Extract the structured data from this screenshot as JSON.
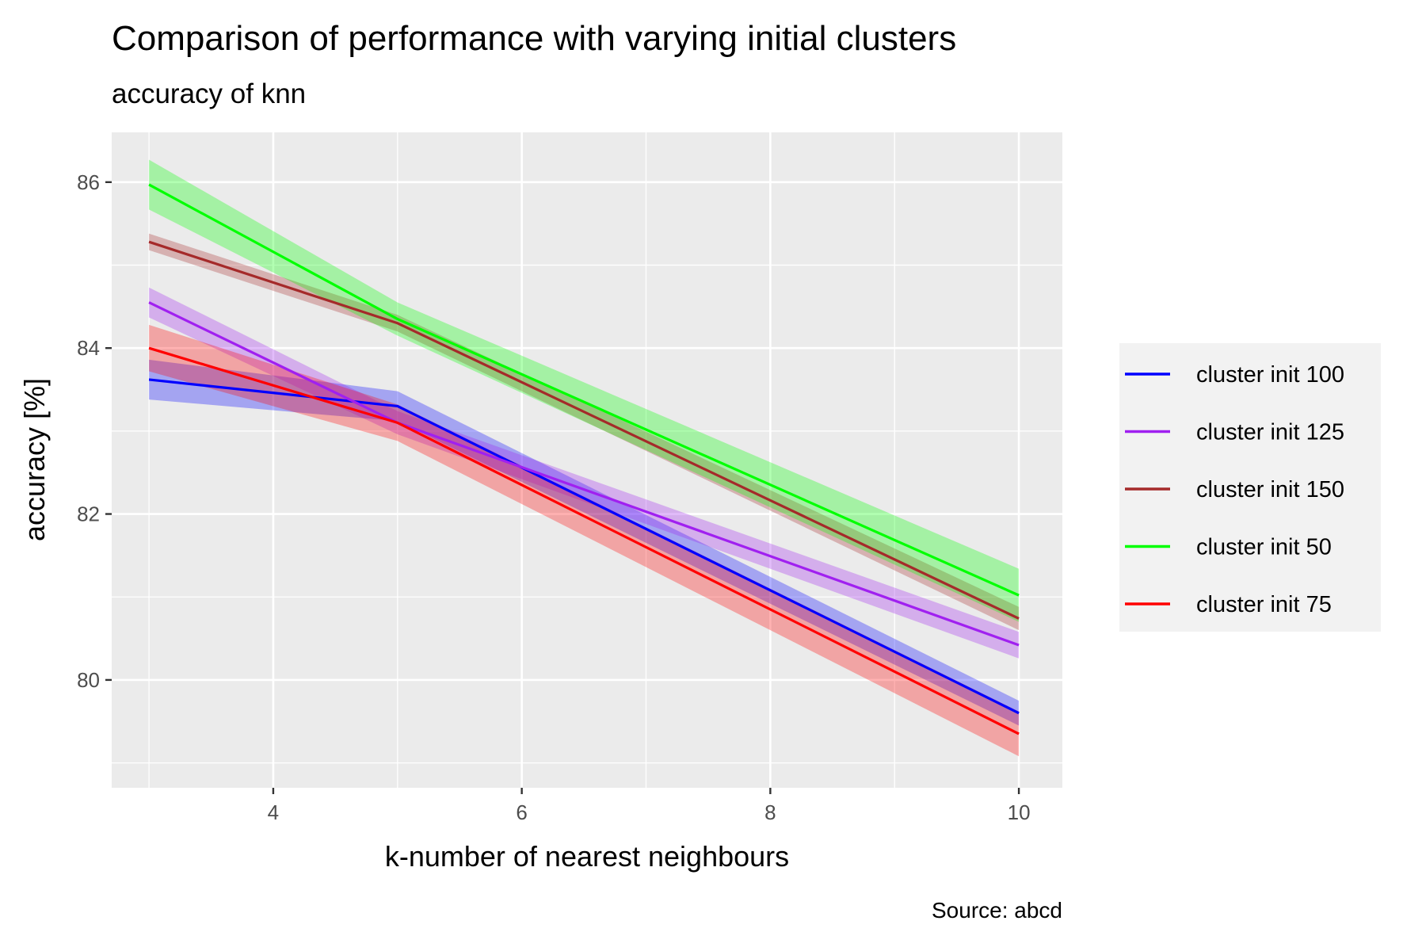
{
  "chart_data": {
    "type": "line",
    "title": "Comparison of performance with varying initial clusters",
    "subtitle": "accuracy of knn",
    "xlabel": "k-number of nearest neighbours",
    "ylabel": "accuracy [%]",
    "caption": "Source: abcd",
    "xlim": [
      2.7,
      10.35
    ],
    "ylim": [
      78.7,
      86.6
    ],
    "x_ticks": [
      4,
      6,
      8,
      10
    ],
    "x_tick_labels": [
      "4",
      "6",
      "8",
      "10"
    ],
    "y_ticks": [
      80,
      82,
      84,
      86
    ],
    "y_tick_labels": [
      "80",
      "82",
      "84",
      "86"
    ],
    "x_minor": [
      3,
      5,
      7,
      9
    ],
    "y_minor": [
      79,
      81,
      83,
      85
    ],
    "grid": true,
    "legend_position": "right",
    "x": [
      3,
      5,
      10
    ],
    "series": [
      {
        "name": "cluster init 100",
        "color": "#0000ff",
        "values": [
          83.62,
          83.3,
          79.6
        ],
        "lower": [
          83.38,
          83.12,
          79.45
        ],
        "upper": [
          83.86,
          83.48,
          79.75
        ]
      },
      {
        "name": "cluster init 125",
        "color": "#a020f0",
        "values": [
          84.55,
          83.1,
          80.42
        ],
        "lower": [
          84.37,
          82.96,
          80.26
        ],
        "upper": [
          84.73,
          83.24,
          80.58
        ]
      },
      {
        "name": "cluster init 150",
        "color": "#a52a2a",
        "values": [
          85.28,
          84.3,
          80.74
        ],
        "lower": [
          85.18,
          84.2,
          80.6
        ],
        "upper": [
          85.38,
          84.4,
          80.88
        ]
      },
      {
        "name": "cluster init 50",
        "color": "#00ff00",
        "values": [
          85.97,
          84.35,
          81.02
        ],
        "lower": [
          85.67,
          84.15,
          80.7
        ],
        "upper": [
          86.27,
          84.55,
          81.34
        ]
      },
      {
        "name": "cluster init 75",
        "color": "#ff0000",
        "values": [
          84.0,
          83.1,
          79.35
        ],
        "lower": [
          83.72,
          82.88,
          79.08
        ],
        "upper": [
          84.28,
          83.32,
          79.62
        ]
      }
    ]
  }
}
